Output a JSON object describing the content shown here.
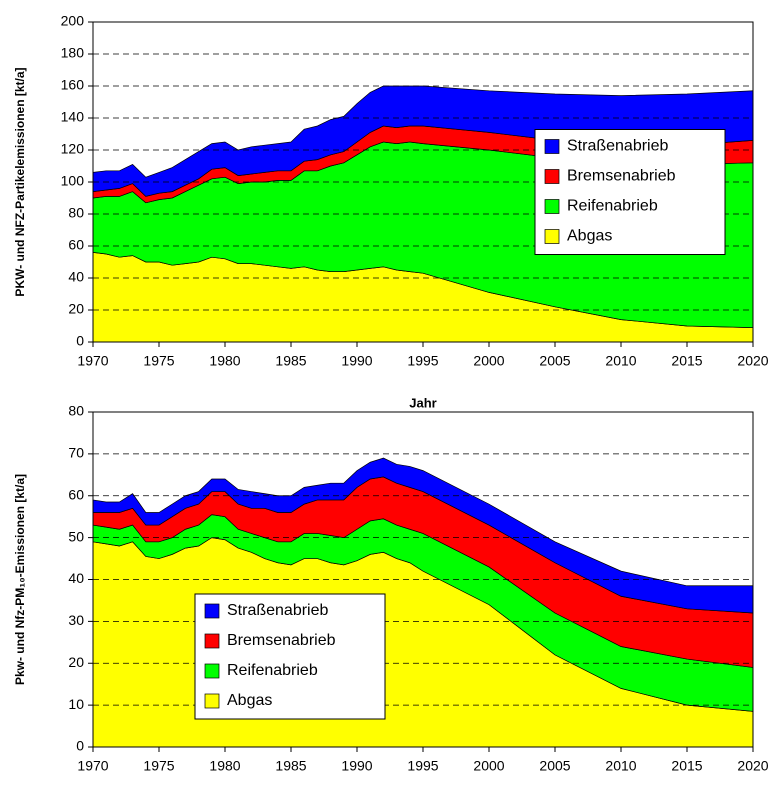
{
  "chart_data": [
    {
      "type": "stacked-area",
      "y_label": "PKW- und NFZ-Partikelemissionen [kt/a]",
      "x_label": "Jahr",
      "x": [
        1970,
        1971,
        1972,
        1973,
        1974,
        1975,
        1976,
        1977,
        1978,
        1979,
        1980,
        1981,
        1982,
        1983,
        1984,
        1985,
        1986,
        1987,
        1988,
        1989,
        1990,
        1991,
        1992,
        1993,
        1994,
        1995,
        2000,
        2005,
        2010,
        2015,
        2020
      ],
      "series": [
        {
          "name": "Abgas",
          "color": "#ffff00",
          "values": [
            56,
            55,
            53,
            54,
            50,
            50,
            48,
            49,
            50,
            53,
            52,
            49,
            49,
            48,
            47,
            46,
            47,
            45,
            44,
            44,
            45,
            46,
            47,
            45,
            44,
            43,
            31,
            22,
            14,
            10,
            9
          ]
        },
        {
          "name": "Reifenabrieb",
          "color": "#00ff00",
          "values": [
            34,
            36,
            38,
            40,
            37,
            39,
            42,
            45,
            48,
            49,
            51,
            50,
            51,
            52,
            54,
            55,
            60,
            62,
            66,
            68,
            72,
            76,
            78,
            79,
            81,
            81,
            89,
            93,
            98,
            101,
            103
          ]
        },
        {
          "name": "Bremsenabrieb",
          "color": "#ff0000",
          "values": [
            4,
            4,
            5,
            5,
            4,
            4,
            4,
            4,
            4,
            6,
            6,
            5,
            5,
            6,
            6,
            6,
            6,
            7,
            7,
            7,
            8,
            9,
            10,
            10,
            10,
            11,
            11,
            11,
            11,
            12,
            14
          ]
        },
        {
          "name": "Straßenabrieb",
          "color": "#0000ff",
          "values": [
            12,
            12,
            11,
            12,
            12,
            13,
            15,
            16,
            17,
            16,
            16,
            16,
            17,
            17,
            17,
            18,
            20,
            21,
            22,
            22,
            24,
            25,
            25,
            26,
            25,
            25,
            26,
            29,
            31,
            32,
            31
          ]
        }
      ],
      "xlim": [
        1970,
        2020
      ],
      "xticks": [
        1970,
        1975,
        1980,
        1985,
        1990,
        1995,
        2000,
        2005,
        2010,
        2015,
        2020
      ],
      "ylim": [
        0,
        200
      ],
      "yticks": [
        0,
        20,
        40,
        60,
        80,
        100,
        120,
        140,
        160,
        180,
        200
      ],
      "grid": true,
      "legend": "center right"
    },
    {
      "type": "stacked-area",
      "y_label": "Pkw- und Nfz-PM₁₀-Emissionen [kt/a]",
      "x": [
        1970,
        1971,
        1972,
        1973,
        1974,
        1975,
        1976,
        1977,
        1978,
        1979,
        1980,
        1981,
        1982,
        1983,
        1984,
        1985,
        1986,
        1987,
        1988,
        1989,
        1990,
        1991,
        1992,
        1993,
        1994,
        1995,
        2000,
        2005,
        2010,
        2015,
        2020
      ],
      "series": [
        {
          "name": "Abgas",
          "color": "#ffff00",
          "values": [
            49,
            48.5,
            48,
            49,
            45.5,
            45,
            46,
            47.5,
            48,
            50,
            49.5,
            47.5,
            46.5,
            45,
            44,
            43.5,
            45,
            45,
            44,
            43.5,
            44.5,
            46,
            46.5,
            45,
            44,
            42,
            34,
            22,
            14,
            10,
            8.5
          ]
        },
        {
          "name": "Reifenabrieb",
          "color": "#00ff00",
          "values": [
            4,
            4,
            4,
            4,
            3.5,
            4,
            4,
            4.5,
            5,
            5.5,
            5.5,
            4.5,
            4.5,
            5,
            5,
            5.5,
            6,
            6,
            6.5,
            6.5,
            7.5,
            8,
            8,
            8,
            8,
            9,
            9,
            10,
            10,
            11,
            10.5
          ]
        },
        {
          "name": "Bremsenabrieb",
          "color": "#ff0000",
          "values": [
            3,
            3.5,
            4,
            4,
            4,
            4,
            5,
            5,
            5,
            5.5,
            6,
            6,
            6,
            7,
            7,
            7,
            7,
            8,
            8.5,
            9,
            10,
            10,
            10,
            10,
            10,
            10,
            10,
            12,
            12,
            12,
            13
          ]
        },
        {
          "name": "Straßenabrieb",
          "color": "#0000ff",
          "values": [
            3,
            2.5,
            2.5,
            3.5,
            3,
            3,
            3,
            3,
            3,
            3,
            3,
            3.5,
            4,
            3.5,
            4,
            4,
            4,
            3.5,
            4,
            4,
            4,
            4,
            4.5,
            4.5,
            5,
            5,
            5,
            5,
            6,
            5.5,
            6.5
          ]
        }
      ],
      "xlim": [
        1970,
        2020
      ],
      "xticks": [
        1970,
        1975,
        1980,
        1985,
        1990,
        1995,
        2000,
        2005,
        2010,
        2015,
        2020
      ],
      "ylim": [
        0,
        80
      ],
      "yticks": [
        0,
        10,
        20,
        30,
        40,
        50,
        60,
        70,
        80
      ],
      "grid": true,
      "legend": "lower left"
    }
  ]
}
